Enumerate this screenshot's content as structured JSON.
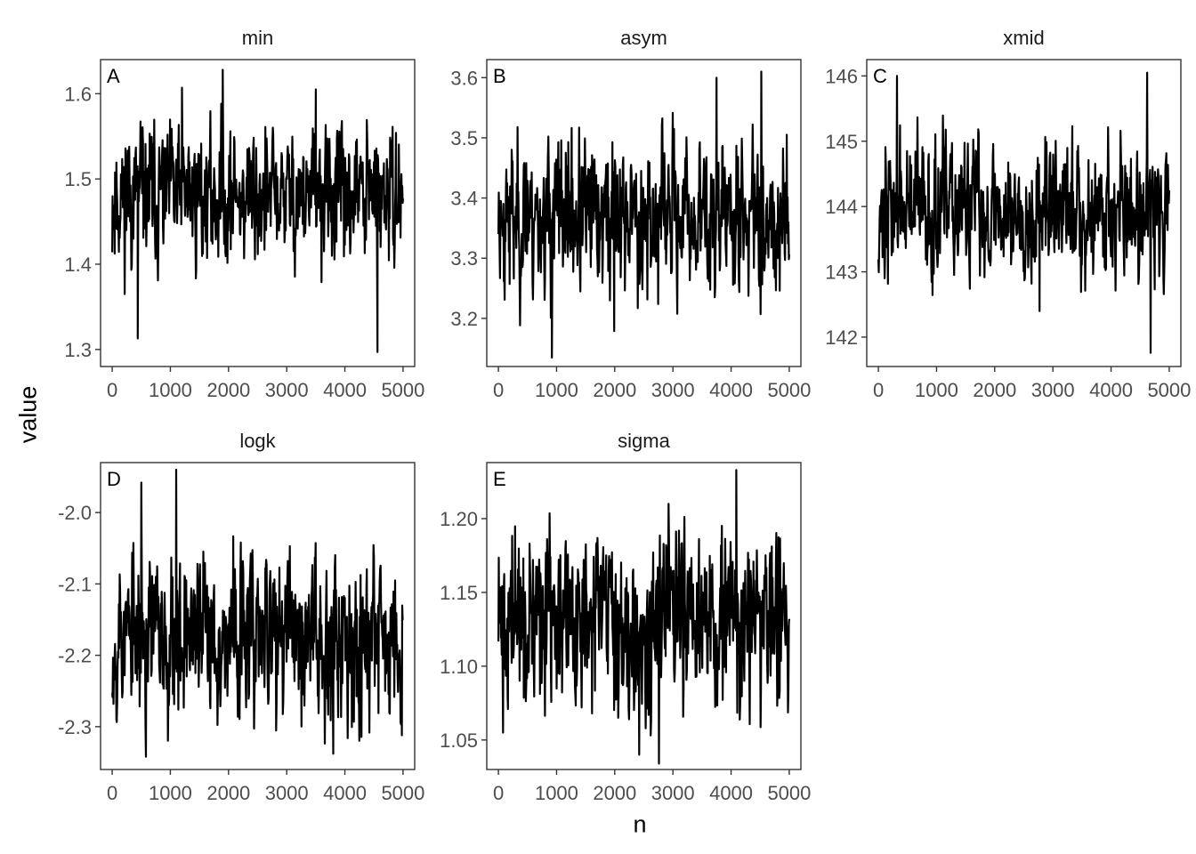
{
  "chart_data": {
    "type": "line",
    "xlabel": "n",
    "ylabel": "value",
    "line_color": "#000000",
    "panel_border_color": "#333333",
    "tick_label_color": "#4d4d4d",
    "grid": false,
    "panels": [
      {
        "id": "A",
        "title": "min",
        "xlim": [
          -200,
          5200
        ],
        "ylim": [
          1.28,
          1.64
        ],
        "xticks": [
          0,
          1000,
          2000,
          3000,
          4000,
          5000
        ],
        "yticks": [
          1.3,
          1.4,
          1.5,
          1.6
        ],
        "ytick_labels": [
          "1.3",
          "1.4",
          "1.5",
          "1.6"
        ],
        "mean": 1.48,
        "sd": 0.038,
        "min": 1.297,
        "max": 1.628,
        "extremes": [
          [
            1900,
            1.628
          ],
          [
            4560,
            1.297
          ],
          [
            440,
            1.313
          ],
          [
            1200,
            1.607
          ],
          [
            3500,
            1.605
          ]
        ],
        "seed": 11
      },
      {
        "id": "B",
        "title": "asym",
        "xlim": [
          -200,
          5200
        ],
        "ylim": [
          3.12,
          3.63
        ],
        "xticks": [
          0,
          1000,
          2000,
          3000,
          4000,
          5000
        ],
        "yticks": [
          3.2,
          3.3,
          3.4,
          3.5,
          3.6
        ],
        "ytick_labels": [
          "3.2",
          "3.3",
          "3.4",
          "3.5",
          "3.6"
        ],
        "mean": 3.37,
        "sd": 0.06,
        "min": 3.135,
        "max": 3.61,
        "extremes": [
          [
            4520,
            3.61
          ],
          [
            920,
            3.135
          ],
          [
            1990,
            3.179
          ],
          [
            3750,
            3.6
          ]
        ],
        "seed": 23
      },
      {
        "id": "C",
        "title": "xmid",
        "xlim": [
          -200,
          5200
        ],
        "ylim": [
          141.55,
          146.25
        ],
        "xticks": [
          0,
          1000,
          2000,
          3000,
          4000,
          5000
        ],
        "yticks": [
          142,
          143,
          144,
          145,
          146
        ],
        "ytick_labels": [
          "142",
          "143",
          "144",
          "145",
          "146"
        ],
        "mean": 143.95,
        "sd": 0.5,
        "min": 141.76,
        "max": 146.05,
        "extremes": [
          [
            4620,
            146.05
          ],
          [
            4680,
            141.76
          ],
          [
            320,
            146.0
          ],
          [
            2770,
            142.4
          ]
        ],
        "seed": 37
      },
      {
        "id": "D",
        "title": "logk",
        "xlim": [
          -200,
          5200
        ],
        "ylim": [
          -2.36,
          -1.93
        ],
        "xticks": [
          0,
          1000,
          2000,
          3000,
          4000,
          5000
        ],
        "yticks": [
          -2.3,
          -2.2,
          -2.1,
          -2.0
        ],
        "ytick_labels": [
          "-2.3",
          "-2.2",
          "-2.1",
          "-2.0"
        ],
        "mean": -2.17,
        "sd": 0.055,
        "min": -2.342,
        "max": -1.94,
        "extremes": [
          [
            1100,
            -1.94
          ],
          [
            580,
            -2.342
          ],
          [
            3800,
            -2.338
          ],
          [
            500,
            -1.958
          ],
          [
            4980,
            -2.312
          ]
        ],
        "seed": 53
      },
      {
        "id": "E",
        "title": "sigma",
        "xlim": [
          -200,
          5200
        ],
        "ylim": [
          1.03,
          1.238
        ],
        "xticks": [
          0,
          1000,
          2000,
          3000,
          4000,
          5000
        ],
        "yticks": [
          1.05,
          1.1,
          1.15,
          1.2
        ],
        "ytick_labels": [
          "1.05",
          "1.10",
          "1.15",
          "1.20"
        ],
        "mean": 1.13,
        "sd": 0.028,
        "min": 1.034,
        "max": 1.233,
        "extremes": [
          [
            4090,
            1.233
          ],
          [
            2760,
            1.034
          ],
          [
            2420,
            1.04
          ],
          [
            80,
            1.055
          ]
        ],
        "seed": 71
      }
    ]
  }
}
